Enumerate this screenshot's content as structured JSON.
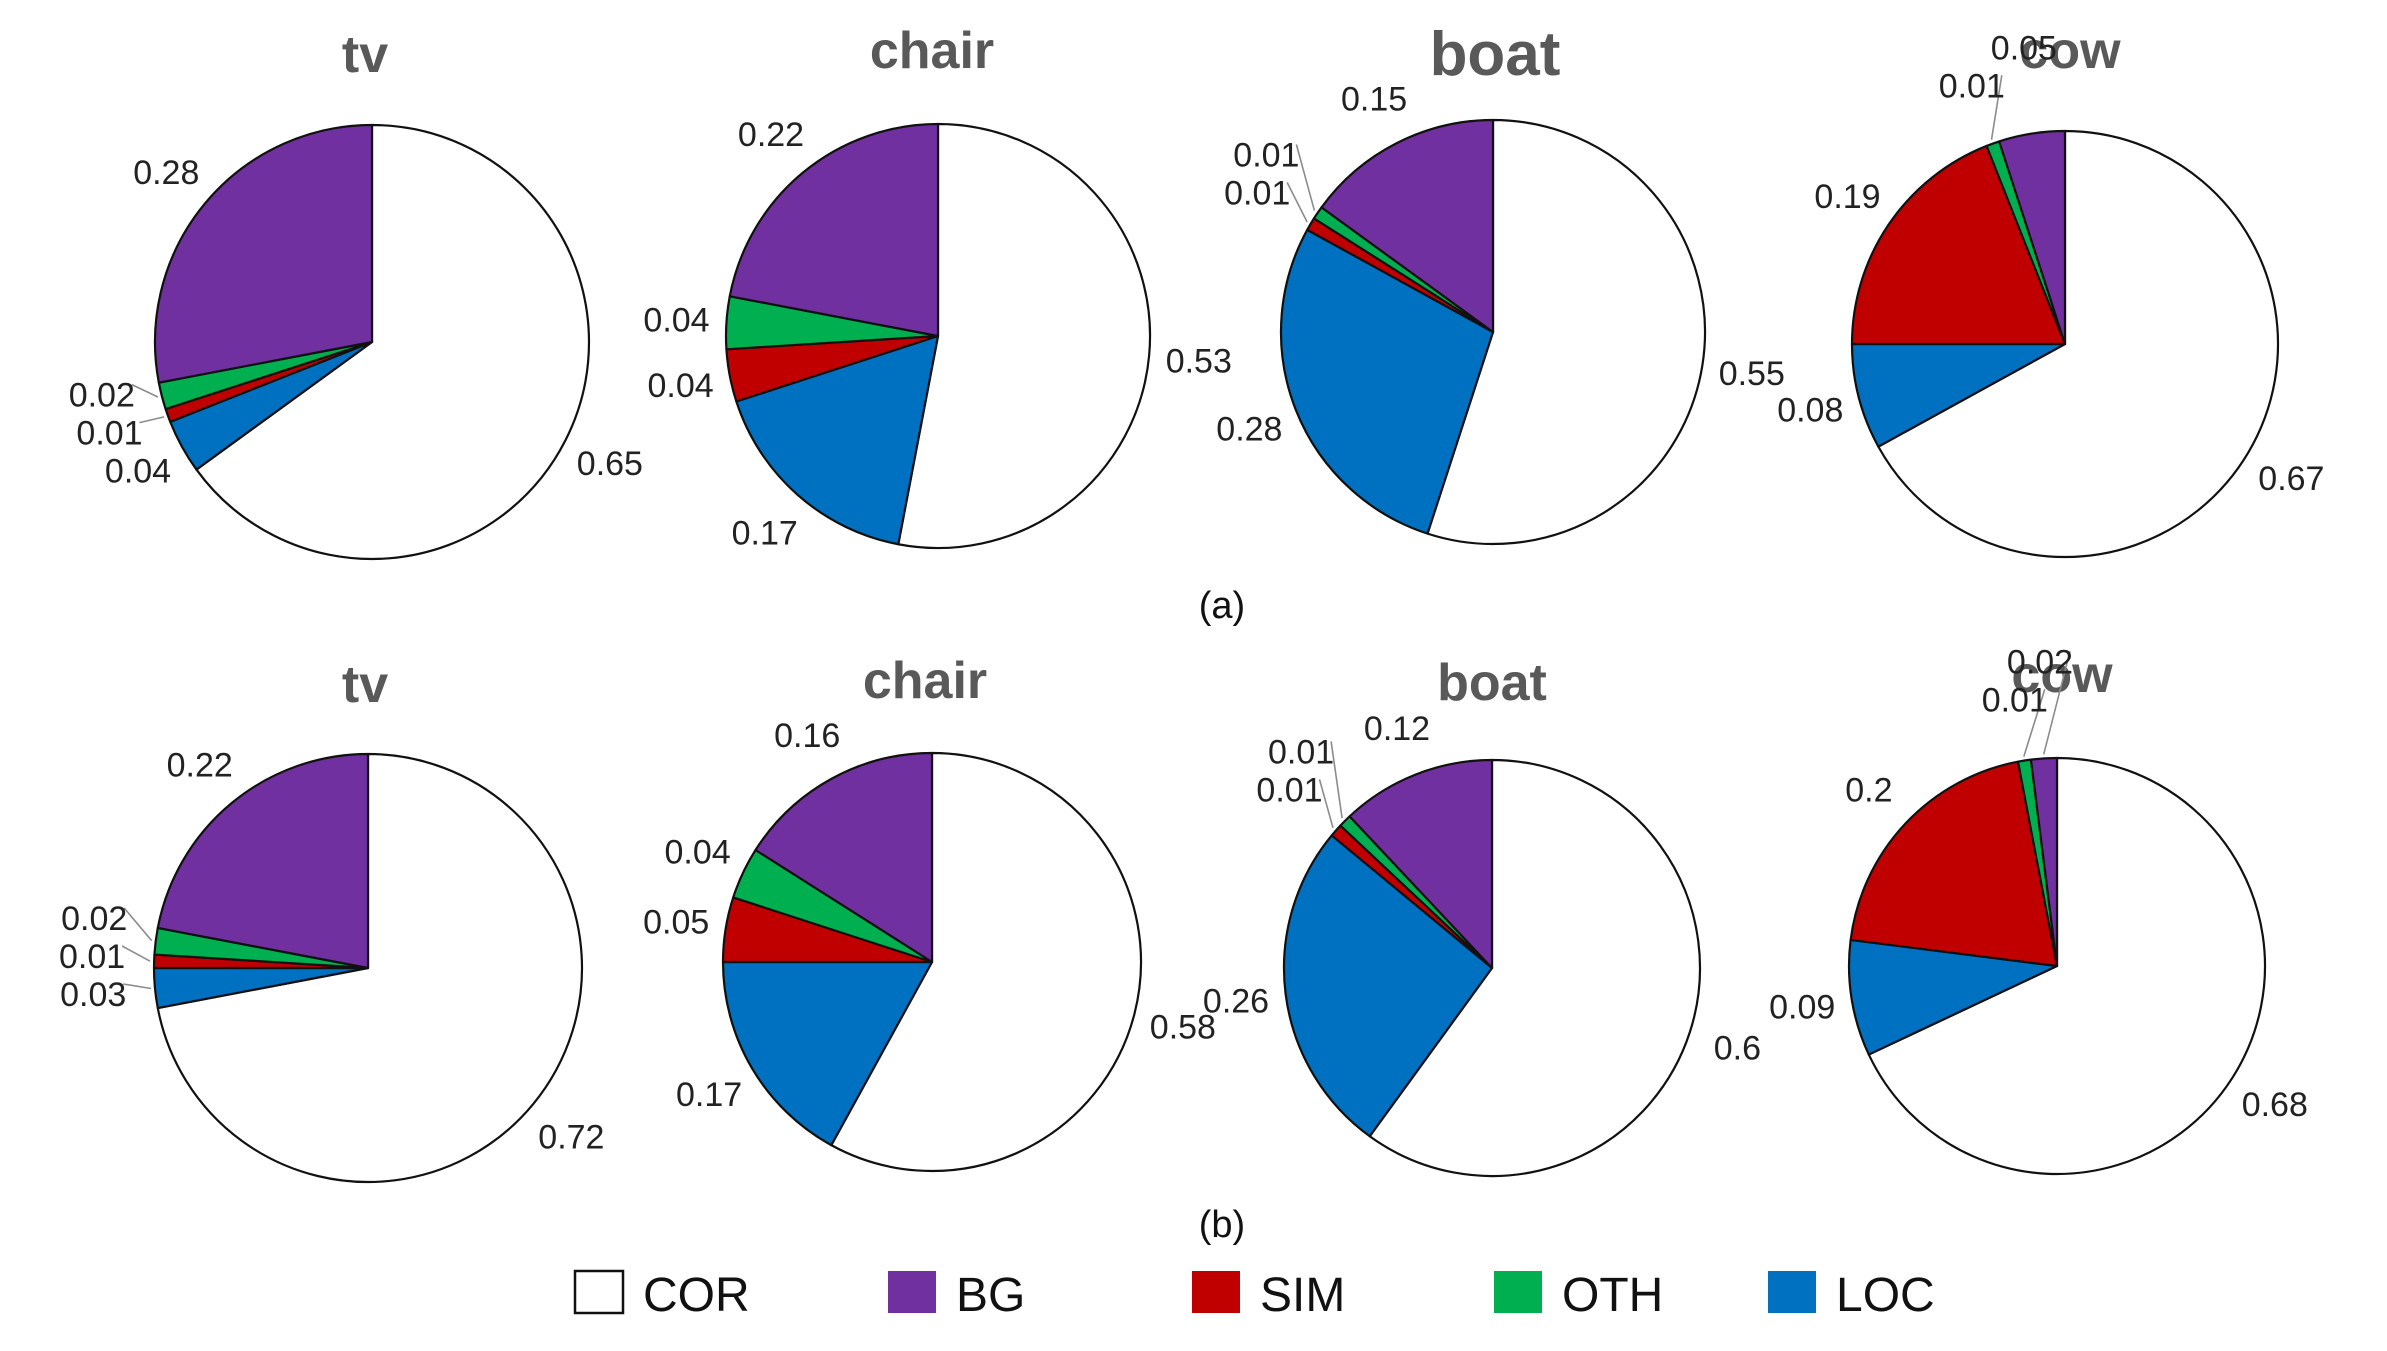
{
  "panel_captions": [
    "(a)",
    "(b)"
  ],
  "categories": [
    "COR",
    "BG",
    "SIM",
    "OTH",
    "LOC"
  ],
  "colors": {
    "COR": "#ffffff",
    "BG": "#7030a0",
    "SIM": "#c00000",
    "OTH": "#00b050",
    "LOC": "#0070c0"
  },
  "legend": [
    {
      "key": "COR",
      "label": "COR"
    },
    {
      "key": "BG",
      "label": "BG"
    },
    {
      "key": "SIM",
      "label": "SIM"
    },
    {
      "key": "OTH",
      "label": "OTH"
    },
    {
      "key": "LOC",
      "label": "LOC"
    }
  ],
  "chart_data": [
    {
      "type": "pie",
      "panel": "(a)",
      "title": "tv",
      "slices": [
        {
          "name": "COR",
          "value": 0.65,
          "label": "0.65"
        },
        {
          "name": "LOC",
          "value": 0.04,
          "label": "0.04"
        },
        {
          "name": "SIM",
          "value": 0.01,
          "label": "0.01"
        },
        {
          "name": "OTH",
          "value": 0.02,
          "label": "0.02"
        },
        {
          "name": "BG",
          "value": 0.28,
          "label": "0.28"
        }
      ]
    },
    {
      "type": "pie",
      "panel": "(a)",
      "title": "chair",
      "slices": [
        {
          "name": "COR",
          "value": 0.53,
          "label": "0.53"
        },
        {
          "name": "LOC",
          "value": 0.17,
          "label": "0.17"
        },
        {
          "name": "SIM",
          "value": 0.04,
          "label": "0.04"
        },
        {
          "name": "OTH",
          "value": 0.04,
          "label": "0.04"
        },
        {
          "name": "BG",
          "value": 0.22,
          "label": "0.22"
        }
      ]
    },
    {
      "type": "pie",
      "panel": "(a)",
      "title": "boat",
      "slices": [
        {
          "name": "COR",
          "value": 0.55,
          "label": "0.55"
        },
        {
          "name": "LOC",
          "value": 0.28,
          "label": "0.28"
        },
        {
          "name": "SIM",
          "value": 0.01,
          "label": "0.01"
        },
        {
          "name": "OTH",
          "value": 0.01,
          "label": "0.01"
        },
        {
          "name": "BG",
          "value": 0.15,
          "label": "0.15"
        }
      ]
    },
    {
      "type": "pie",
      "panel": "(a)",
      "title": "cow",
      "slices": [
        {
          "name": "COR",
          "value": 0.67,
          "label": "0.67"
        },
        {
          "name": "LOC",
          "value": 0.08,
          "label": "0.08"
        },
        {
          "name": "SIM",
          "value": 0.19,
          "label": "0.19"
        },
        {
          "name": "OTH",
          "value": 0.01,
          "label": "0.01"
        },
        {
          "name": "BG",
          "value": 0.05,
          "label": "0.05"
        }
      ]
    },
    {
      "type": "pie",
      "panel": "(b)",
      "title": "tv",
      "slices": [
        {
          "name": "COR",
          "value": 0.72,
          "label": "0.72"
        },
        {
          "name": "LOC",
          "value": 0.03,
          "label": "0.03"
        },
        {
          "name": "SIM",
          "value": 0.01,
          "label": "0.01"
        },
        {
          "name": "OTH",
          "value": 0.02,
          "label": "0.02"
        },
        {
          "name": "BG",
          "value": 0.22,
          "label": "0.22"
        }
      ]
    },
    {
      "type": "pie",
      "panel": "(b)",
      "title": "chair",
      "slices": [
        {
          "name": "COR",
          "value": 0.58,
          "label": "0.58"
        },
        {
          "name": "LOC",
          "value": 0.17,
          "label": "0.17"
        },
        {
          "name": "SIM",
          "value": 0.05,
          "label": "0.05"
        },
        {
          "name": "OTH",
          "value": 0.04,
          "label": "0.04"
        },
        {
          "name": "BG",
          "value": 0.16,
          "label": "0.16"
        }
      ]
    },
    {
      "type": "pie",
      "panel": "(b)",
      "title": "boat",
      "slices": [
        {
          "name": "COR",
          "value": 0.6,
          "label": "0.6"
        },
        {
          "name": "LOC",
          "value": 0.26,
          "label": "0.26"
        },
        {
          "name": "SIM",
          "value": 0.01,
          "label": "0.01"
        },
        {
          "name": "OTH",
          "value": 0.01,
          "label": "0.01"
        },
        {
          "name": "BG",
          "value": 0.12,
          "label": "0.12"
        }
      ]
    },
    {
      "type": "pie",
      "panel": "(b)",
      "title": "cow",
      "slices": [
        {
          "name": "COR",
          "value": 0.68,
          "label": "0.68"
        },
        {
          "name": "LOC",
          "value": 0.09,
          "label": "0.09"
        },
        {
          "name": "SIM",
          "value": 0.2,
          "label": "0.2"
        },
        {
          "name": "OTH",
          "value": 0.01,
          "label": "0.01"
        },
        {
          "name": "BG",
          "value": 0.02,
          "label": "0.02"
        }
      ]
    }
  ]
}
